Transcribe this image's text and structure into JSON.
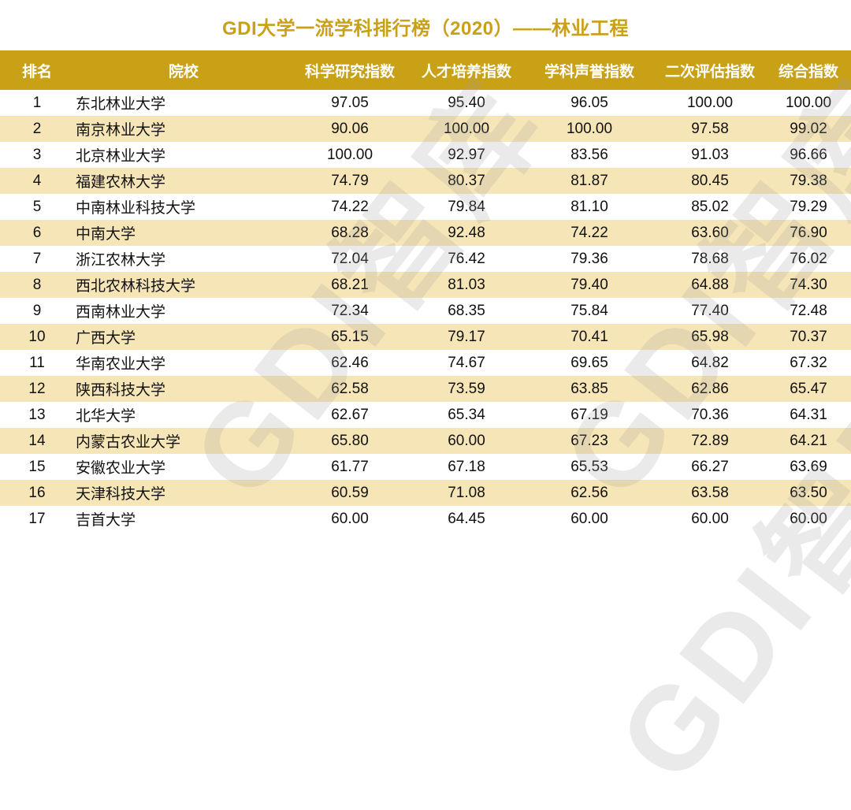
{
  "title": "GDI大学一流学科排行榜（2020）——林业工程",
  "watermark": "GDI智库",
  "colors": {
    "title": "#c9a017",
    "header_bg": "#c9a117",
    "header_text": "#ffffff",
    "row_alt_bg": "#f6e6b7",
    "row_bg": "#ffffff"
  },
  "table": {
    "headers": [
      "排名",
      "院校",
      "科学研究指数",
      "人才培养指数",
      "学科声誉指数",
      "二次评估指数",
      "综合指数"
    ],
    "rows": [
      {
        "rank": "1",
        "school": "东北林业大学",
        "research": "97.05",
        "talent": "95.40",
        "reputation": "96.05",
        "second_eval": "100.00",
        "overall": "100.00"
      },
      {
        "rank": "2",
        "school": "南京林业大学",
        "research": "90.06",
        "talent": "100.00",
        "reputation": "100.00",
        "second_eval": "97.58",
        "overall": "99.02"
      },
      {
        "rank": "3",
        "school": "北京林业大学",
        "research": "100.00",
        "talent": "92.97",
        "reputation": "83.56",
        "second_eval": "91.03",
        "overall": "96.66"
      },
      {
        "rank": "4",
        "school": "福建农林大学",
        "research": "74.79",
        "talent": "80.37",
        "reputation": "81.87",
        "second_eval": "80.45",
        "overall": "79.38"
      },
      {
        "rank": "5",
        "school": "中南林业科技大学",
        "research": "74.22",
        "talent": "79.84",
        "reputation": "81.10",
        "second_eval": "85.02",
        "overall": "79.29"
      },
      {
        "rank": "6",
        "school": "中南大学",
        "research": "68.28",
        "talent": "92.48",
        "reputation": "74.22",
        "second_eval": "63.60",
        "overall": "76.90"
      },
      {
        "rank": "7",
        "school": "浙江农林大学",
        "research": "72.04",
        "talent": "76.42",
        "reputation": "79.36",
        "second_eval": "78.68",
        "overall": "76.02"
      },
      {
        "rank": "8",
        "school": "西北农林科技大学",
        "research": "68.21",
        "talent": "81.03",
        "reputation": "79.40",
        "second_eval": "64.88",
        "overall": "74.30"
      },
      {
        "rank": "9",
        "school": "西南林业大学",
        "research": "72.34",
        "talent": "68.35",
        "reputation": "75.84",
        "second_eval": "77.40",
        "overall": "72.48"
      },
      {
        "rank": "10",
        "school": "广西大学",
        "research": "65.15",
        "talent": "79.17",
        "reputation": "70.41",
        "second_eval": "65.98",
        "overall": "70.37"
      },
      {
        "rank": "11",
        "school": "华南农业大学",
        "research": "62.46",
        "talent": "74.67",
        "reputation": "69.65",
        "second_eval": "64.82",
        "overall": "67.32"
      },
      {
        "rank": "12",
        "school": "陕西科技大学",
        "research": "62.58",
        "talent": "73.59",
        "reputation": "63.85",
        "second_eval": "62.86",
        "overall": "65.47"
      },
      {
        "rank": "13",
        "school": "北华大学",
        "research": "62.67",
        "talent": "65.34",
        "reputation": "67.19",
        "second_eval": "70.36",
        "overall": "64.31"
      },
      {
        "rank": "14",
        "school": "内蒙古农业大学",
        "research": "65.80",
        "talent": "60.00",
        "reputation": "67.23",
        "second_eval": "72.89",
        "overall": "64.21"
      },
      {
        "rank": "15",
        "school": "安徽农业大学",
        "research": "61.77",
        "talent": "67.18",
        "reputation": "65.53",
        "second_eval": "66.27",
        "overall": "63.69"
      },
      {
        "rank": "16",
        "school": "天津科技大学",
        "research": "60.59",
        "talent": "71.08",
        "reputation": "62.56",
        "second_eval": "63.58",
        "overall": "63.50"
      },
      {
        "rank": "17",
        "school": "吉首大学",
        "research": "60.00",
        "talent": "64.45",
        "reputation": "60.00",
        "second_eval": "60.00",
        "overall": "60.00"
      }
    ]
  }
}
